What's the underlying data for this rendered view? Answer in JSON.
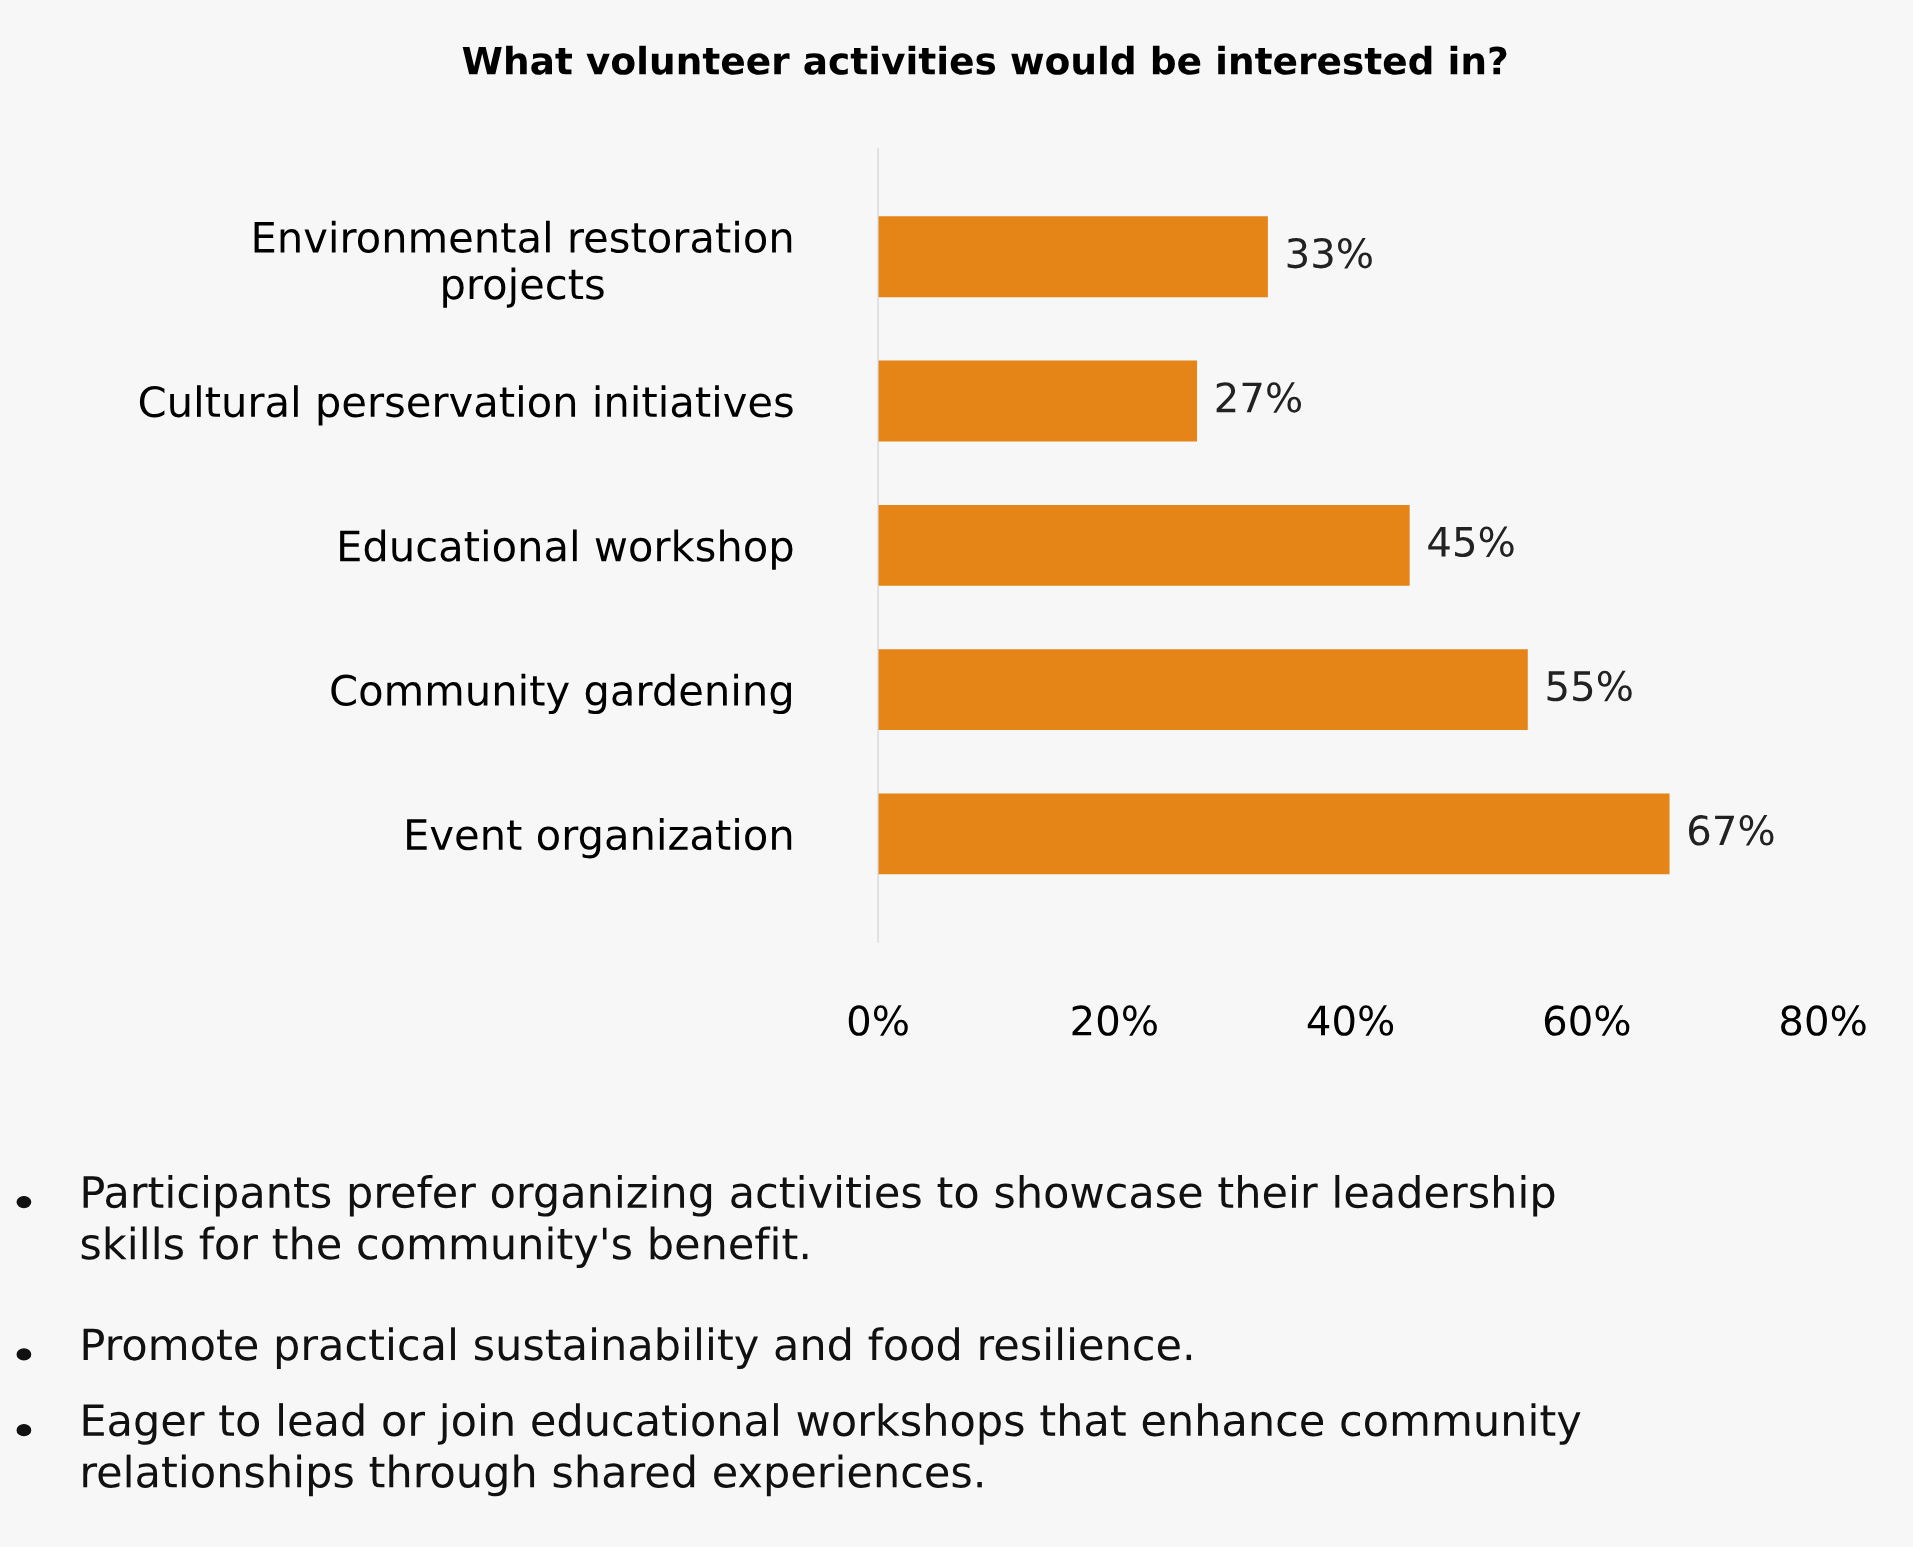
{
  "chart_data": {
    "type": "bar",
    "orientation": "horizontal",
    "title": "What volunteer activities would be interested in?",
    "categories": [
      "Environmental restoration\nprojects",
      "Cultural perservation initiatives",
      "Educational workshop",
      "Community gardening",
      "Event organization"
    ],
    "values": [
      33,
      27,
      45,
      55,
      67
    ],
    "value_labels": [
      "33%",
      "27%",
      "45%",
      "55%",
      "67%"
    ],
    "color": "#e58417",
    "xlim": [
      0,
      80
    ],
    "xticks": [
      {
        "value": 0,
        "label": "0%"
      },
      {
        "value": 20,
        "label": "20%"
      },
      {
        "value": 40,
        "label": "40%"
      },
      {
        "value": 60,
        "label": "60%"
      },
      {
        "value": 80,
        "label": "80%"
      }
    ],
    "grid": false,
    "annotations": [
      "Participants prefer organizing activities to showcase their leadership\nskills for the community's benefit.",
      "Promote practical sustainability and food resilience.",
      "Eager to lead or join educational workshops that enhance community\nrelationships through shared experiences."
    ]
  }
}
